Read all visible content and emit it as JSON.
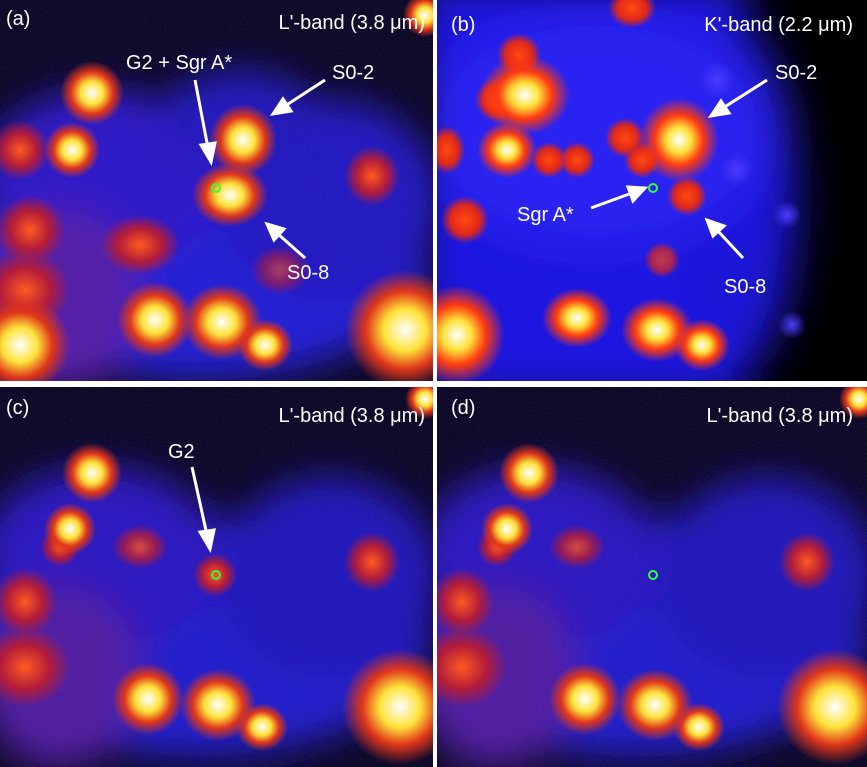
{
  "panels": {
    "a": {
      "id": "(a)",
      "band": "L'-band (3.8 μm)",
      "labels": {
        "g2_sgra": "G2 + Sgr A*",
        "s02": "S0-2",
        "s08": "S0-8"
      }
    },
    "b": {
      "id": "(b)",
      "band": "K'-band (2.2 μm)",
      "labels": {
        "sgra": "Sgr A*",
        "s02": "S0-2",
        "s08": "S0-8"
      }
    },
    "c": {
      "id": "(c)",
      "band": "L'-band (3.8 μm)",
      "labels": {
        "g2": "G2"
      }
    },
    "d": {
      "id": "(d)",
      "band": "L'-band (3.8 μm)"
    }
  },
  "colors": {
    "frame": "#ffffff",
    "background_blue": "#1a14d8",
    "faint_red": "#d22a1e",
    "hot_yellow": "#ffe23a",
    "core_white": "#ffffff",
    "marker": "#33ff33",
    "annotation": "#ffffff"
  },
  "colormap": "black-blue-red-yellow-white (IR intensity)"
}
